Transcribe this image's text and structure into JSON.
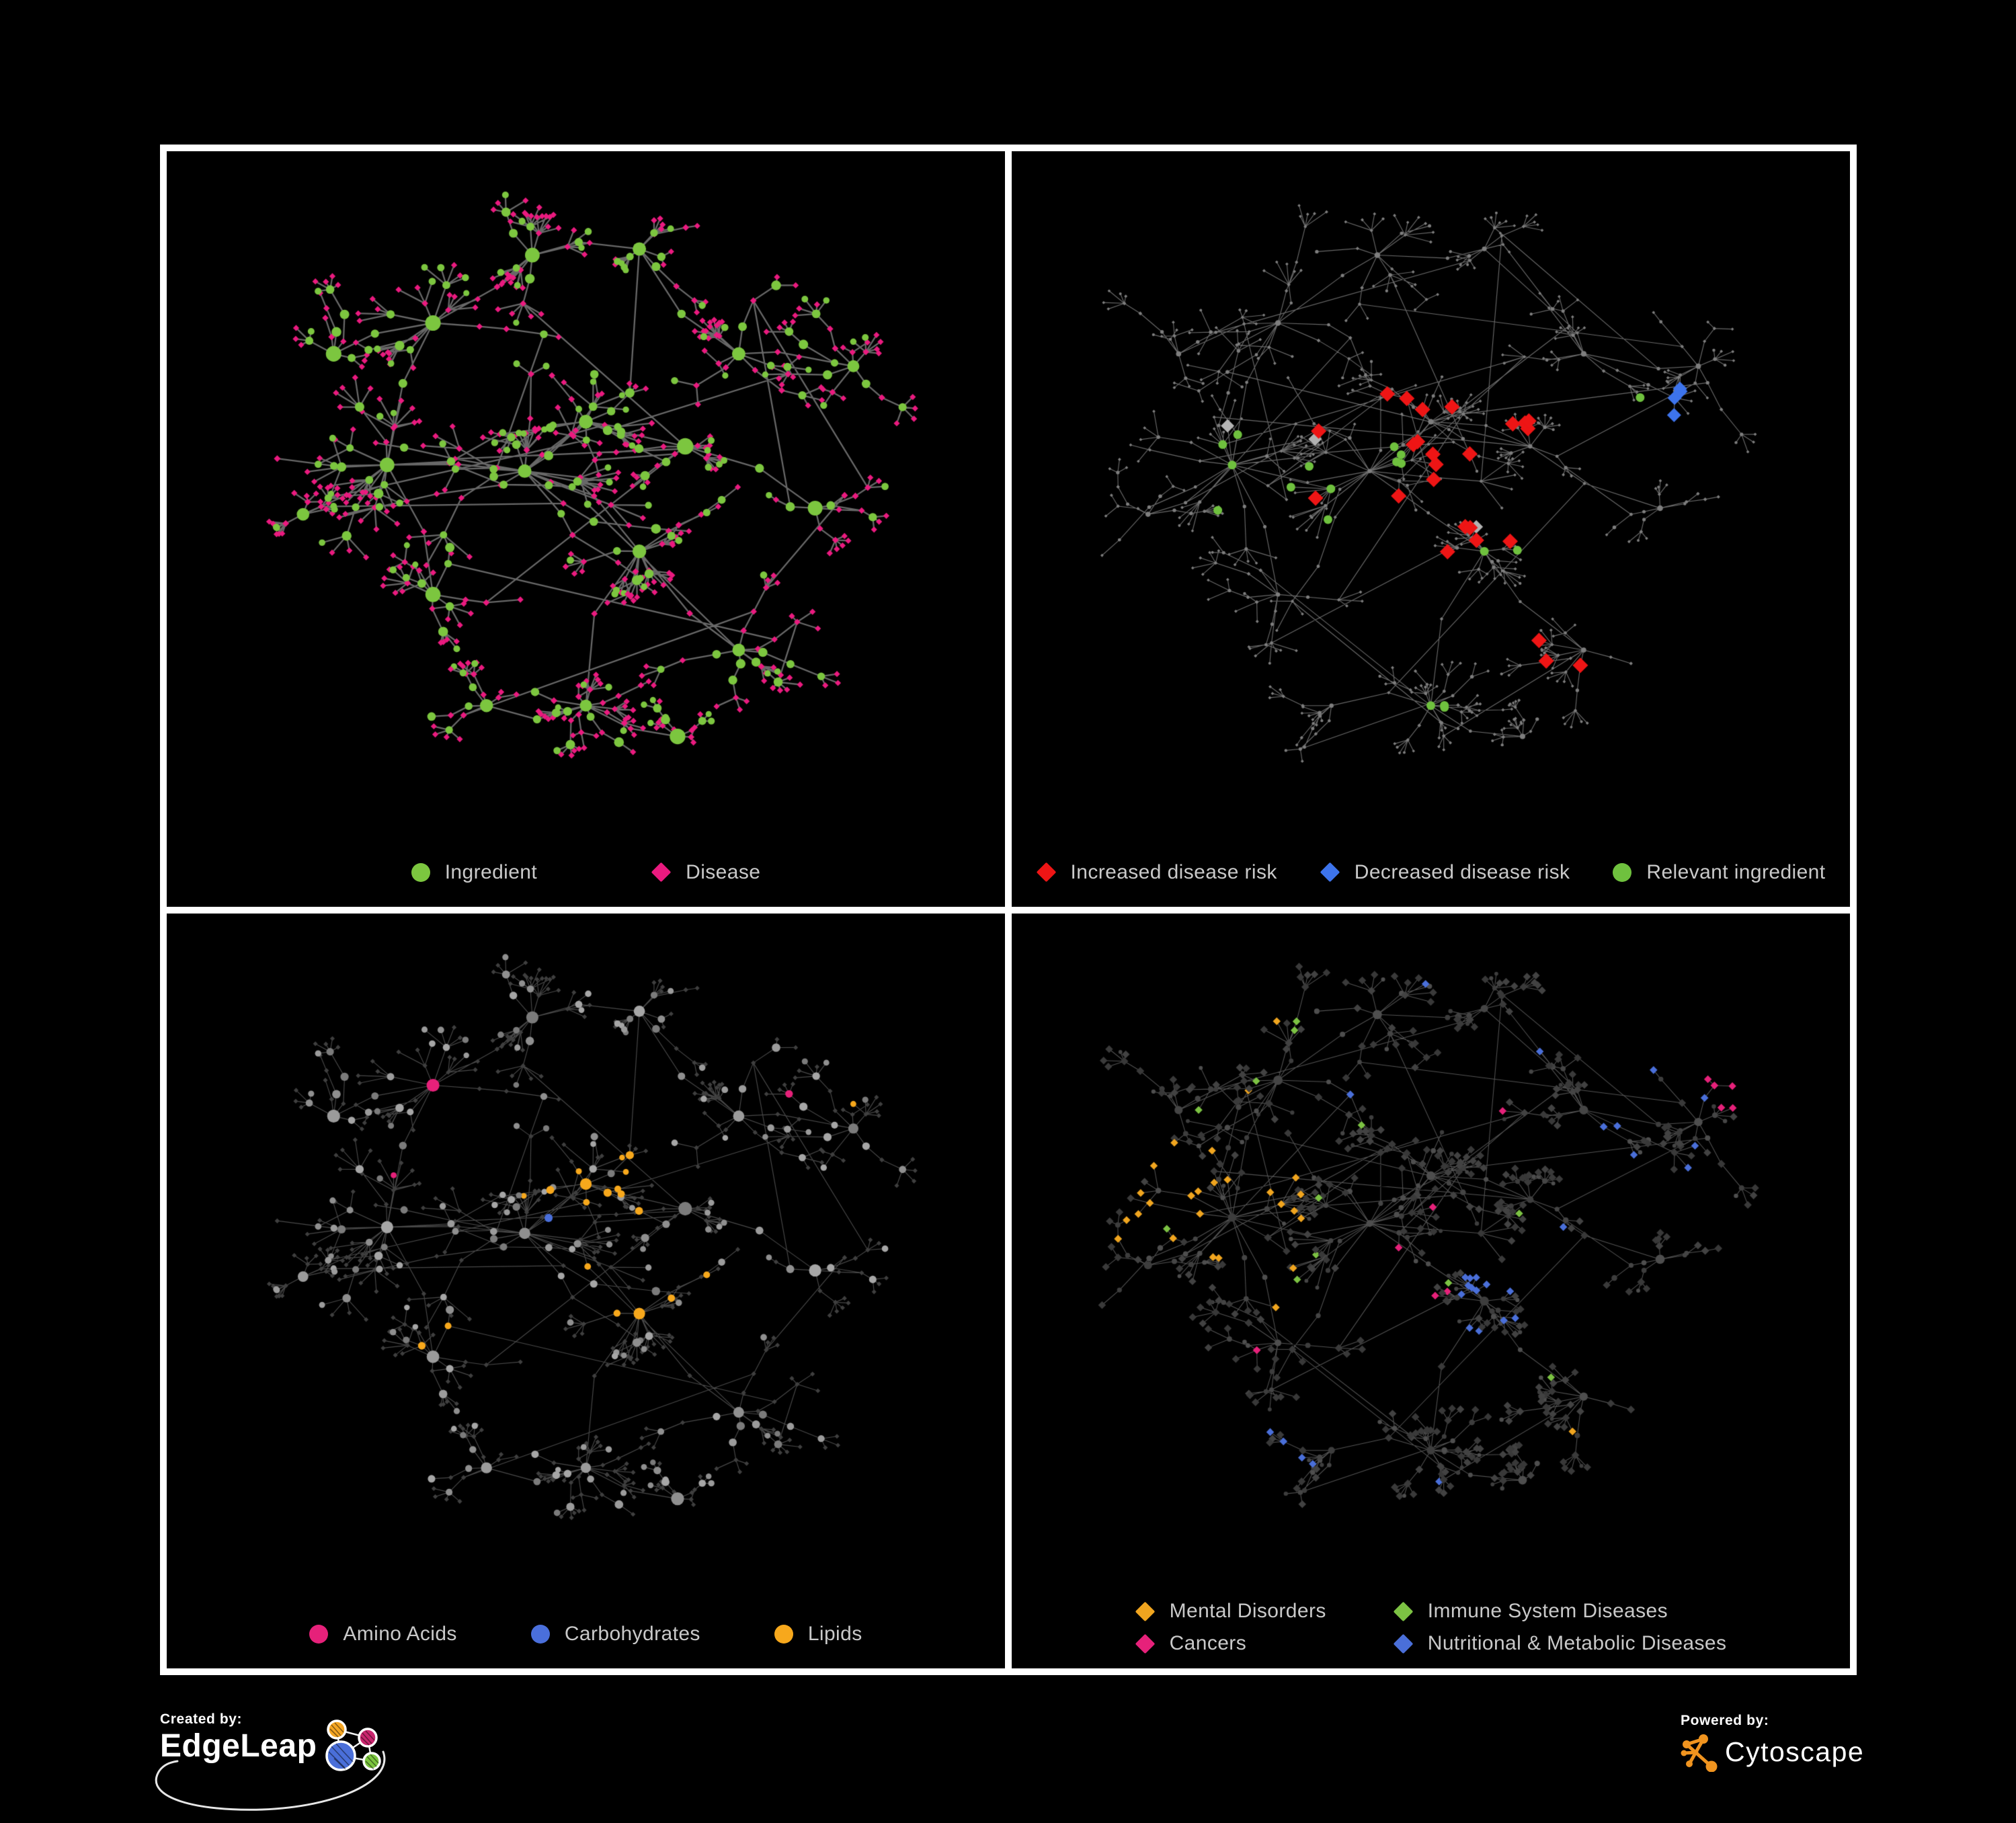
{
  "figure": {
    "background": "#000000",
    "frame_color": "#ffffff",
    "legend_text_color": "#C9C9C9"
  },
  "footer": {
    "created_by_label": "Created by:",
    "created_by_brand": "EdgeLeap",
    "powered_by_label": "Powered by:",
    "powered_by_brand": "Cytoscape",
    "edgeleap_icon_colors": [
      "#F5A623",
      "#C9256E",
      "#4A6FD9",
      "#7CC63F"
    ],
    "cytoscape_icon_color": "#F0941F"
  },
  "layout": {
    "clusters": [
      [
        0.24,
        0.48,
        0.095,
        13
      ],
      [
        0.42,
        0.49,
        0.105,
        15
      ],
      [
        0.5,
        0.41,
        0.06,
        9
      ],
      [
        0.57,
        0.62,
        0.06,
        9
      ],
      [
        0.5,
        0.87,
        0.05,
        11
      ],
      [
        0.3,
        0.25,
        0.08,
        8
      ],
      [
        0.43,
        0.14,
        0.07,
        7
      ],
      [
        0.57,
        0.13,
        0.05,
        5
      ],
      [
        0.7,
        0.3,
        0.06,
        7
      ],
      [
        0.85,
        0.32,
        0.06,
        7
      ],
      [
        0.7,
        0.78,
        0.055,
        7
      ],
      [
        0.3,
        0.69,
        0.065,
        7
      ],
      [
        0.17,
        0.3,
        0.055,
        5
      ],
      [
        0.13,
        0.56,
        0.045,
        4
      ],
      [
        0.63,
        0.45,
        0.045,
        5
      ],
      [
        0.8,
        0.55,
        0.045,
        5
      ],
      [
        0.37,
        0.87,
        0.045,
        5
      ],
      [
        0.62,
        0.92,
        0.035,
        4
      ]
    ],
    "extra_links": 40
  },
  "panels": [
    {
      "id": "ingredient-disease",
      "layout_seed": 13,
      "legend": {
        "gap": 170,
        "rows": [
          [
            {
              "label": "Ingredient",
              "shape": "circle",
              "color": "#7CC63F"
            },
            {
              "label": "Disease",
              "shape": "diamond",
              "color": "#EA1A7F"
            }
          ]
        ]
      },
      "style": {
        "edge": {
          "color": "#6E6E6E",
          "width": 2.3,
          "alpha": 0.95
        },
        "ingredient": {
          "shape": "circle",
          "color": "#7CC63F",
          "r_base": 3.2,
          "r_scale": 0.55
        },
        "disease": {
          "shape": "diamond",
          "color": "#EA1A7F",
          "r_base": 4.3,
          "r_scale": 0.1
        },
        "rules": []
      }
    },
    {
      "id": "disease-risk",
      "layout_seed": 47,
      "legend": {
        "gap": 64,
        "rows": [
          [
            {
              "label": "Increased disease risk",
              "shape": "diamond",
              "color": "#EE1515"
            },
            {
              "label": "Decreased disease risk",
              "shape": "diamond",
              "color": "#3D74EC"
            },
            {
              "label": "Relevant ingredient",
              "shape": "circle",
              "color": "#6FC13E"
            }
          ]
        ]
      },
      "style": {
        "edge": {
          "color": "#8C8C8C",
          "width": 1.15,
          "alpha": 0.75
        },
        "ingredient": {
          "shape": "circle",
          "color": "#7E7E7E",
          "r_base": 1.6,
          "r_scale": 0.16
        },
        "disease": {
          "shape": "diamond",
          "color": "#7E7E7E",
          "r_base": 2.0,
          "r_scale": 0.12
        },
        "rules": [
          {
            "target": "disease",
            "color": "#EE1515",
            "r": 11.5,
            "foci": [
              [
                0.42,
                0.5,
                0.085,
                0.55
              ],
              [
                0.46,
                0.41,
                0.05,
                0.5
              ],
              [
                0.52,
                0.47,
                0.04,
                0.5
              ],
              [
                0.25,
                0.46,
                0.035,
                0.3
              ],
              [
                0.57,
                0.6,
                0.045,
                0.45
              ],
              [
                0.7,
                0.78,
                0.035,
                0.55
              ],
              [
                0.63,
                0.43,
                0.025,
                0.8
              ],
              [
                0.31,
                0.33,
                0.018,
                0.9
              ],
              [
                0.74,
                0.8,
                0.03,
                0.5
              ],
              [
                0.86,
                0.74,
                0.025,
                0.6
              ],
              [
                0.55,
                0.53,
                0.03,
                0.5
              ]
            ]
          },
          {
            "target": "disease",
            "color": "#3D74EC",
            "r": 10.5,
            "foci": [
              [
                0.235,
                0.5,
                0.04,
                0.45
              ],
              [
                0.82,
                0.375,
                0.022,
                0.98
              ],
              [
                0.27,
                0.455,
                0.025,
                0.35
              ]
            ]
          },
          {
            "target": "disease",
            "color": "#B3B3B3",
            "r": 10,
            "foci": [
              [
                0.41,
                0.47,
                0.09,
                0.08
              ],
              [
                0.225,
                0.44,
                0.04,
                0.3
              ],
              [
                0.285,
                0.59,
                0.022,
                0.6
              ],
              [
                0.56,
                0.57,
                0.03,
                0.25
              ]
            ]
          },
          {
            "target": "ingredient",
            "color": "#6FC13E",
            "r": 6.5,
            "foci": [
              [
                0.43,
                0.47,
                0.09,
                0.32
              ],
              [
                0.25,
                0.48,
                0.065,
                0.4
              ],
              [
                0.57,
                0.6,
                0.04,
                0.55
              ],
              [
                0.7,
                0.79,
                0.035,
                0.5
              ],
              [
                0.5,
                0.87,
                0.018,
                0.95
              ],
              [
                0.78,
                0.385,
                0.018,
                0.95
              ],
              [
                0.29,
                0.66,
                0.018,
                0.8
              ],
              [
                0.86,
                0.6,
                0.028,
                0.4
              ],
              [
                0.13,
                0.52,
                0.018,
                0.6
              ],
              [
                0.48,
                0.3,
                0.03,
                0.3
              ]
            ]
          }
        ]
      }
    },
    {
      "id": "ingredient-classes",
      "layout_seed": 13,
      "legend": {
        "gap": 110,
        "rows": [
          [
            {
              "label": "Amino Acids",
              "shape": "circle",
              "color": "#E6217A"
            },
            {
              "label": "Carbohydrates",
              "shape": "circle",
              "color": "#4A6FDB"
            },
            {
              "label": "Lipids",
              "shape": "circle",
              "color": "#F7A81C"
            }
          ]
        ]
      },
      "style": {
        "edge": {
          "color": "#7A7A7A",
          "width": 1.15,
          "alpha": 0.6
        },
        "ingredient": {
          "shape": "circle",
          "color": "#9B9B9B",
          "r_base": 3.2,
          "r_scale": 0.42,
          "variants": [
            "#A6A6A6",
            "#8F8F8F",
            "#7B7B7B",
            "#9B9B9B"
          ]
        },
        "disease": {
          "shape": "diamond",
          "color": "#3F3F3F",
          "r_base": 3.4,
          "r_scale": 0.05
        },
        "rules": [
          {
            "target": "ingredient",
            "color": "#4A6FDB",
            "foci": [
              [
                0.5,
                0.4,
                0.04,
                0.35
              ],
              [
                0.44,
                0.5,
                0.035,
                0.25
              ],
              [
                0.05,
                0.245,
                0.015,
                0.95
              ],
              [
                0.28,
                0.06,
                0.015,
                0.9
              ],
              [
                0.41,
                0.28,
                0.015,
                0.7
              ],
              [
                0.68,
                0.56,
                0.018,
                0.6
              ]
            ]
          },
          {
            "target": "ingredient",
            "color": "#F7A81C",
            "foci": [
              [
                0.5,
                0.41,
                0.055,
                0.95
              ],
              [
                0.43,
                0.47,
                0.05,
                0.35
              ],
              [
                0.46,
                0.56,
                0.04,
                0.45
              ],
              [
                0.56,
                0.62,
                0.028,
                0.95
              ],
              [
                0.44,
                0.22,
                0.06,
                0.45
              ],
              [
                0.36,
                0.25,
                0.04,
                0.3
              ],
              [
                0.65,
                0.57,
                0.045,
                0.6
              ],
              [
                0.62,
                0.7,
                0.03,
                0.4
              ],
              [
                0.73,
                0.42,
                0.035,
                0.3
              ],
              [
                0.3,
                0.65,
                0.03,
                0.4
              ],
              [
                0.86,
                0.3,
                0.02,
                0.5
              ],
              [
                0.35,
                0.57,
                0.025,
                0.4
              ],
              [
                0.6,
                0.3,
                0.03,
                0.3
              ]
            ]
          },
          {
            "target": "ingredient",
            "color": "#E6217A",
            "foci": [
              [
                0.205,
                0.17,
                0.03,
                0.7
              ],
              [
                0.3,
                0.245,
                0.03,
                0.5
              ],
              [
                0.235,
                0.39,
                0.02,
                0.6
              ],
              [
                0.25,
                0.47,
                0.02,
                0.5
              ],
              [
                0.11,
                0.49,
                0.015,
                0.8
              ],
              [
                0.66,
                0.04,
                0.013,
                0.9
              ],
              [
                0.94,
                0.27,
                0.015,
                0.9
              ],
              [
                0.78,
                0.26,
                0.018,
                0.6
              ],
              [
                0.28,
                0.6,
                0.025,
                0.5
              ],
              [
                0.35,
                0.66,
                0.02,
                0.5
              ],
              [
                0.46,
                0.6,
                0.018,
                0.5
              ],
              [
                0.26,
                0.75,
                0.03,
                0.6
              ],
              [
                0.69,
                0.7,
                0.04,
                0.6
              ],
              [
                0.34,
                0.77,
                0.018,
                0.6
              ],
              [
                0.73,
                0.66,
                0.02,
                0.5
              ]
            ]
          }
        ]
      }
    },
    {
      "id": "disease-categories",
      "layout_seed": 47,
      "legend": {
        "columns": 2,
        "col_gap": 100,
        "row_gap": 14,
        "rows": [
          [
            {
              "label": "Mental Disorders",
              "shape": "diamond",
              "color": "#F0A51F"
            },
            {
              "label": "Immune System Diseases",
              "shape": "diamond",
              "color": "#7CC243"
            }
          ],
          [
            {
              "label": "Cancers",
              "shape": "diamond",
              "color": "#E6217A"
            },
            {
              "label": "Nutritional & Metabolic Diseases",
              "shape": "diamond",
              "color": "#4A6FD9"
            }
          ]
        ]
      },
      "style": {
        "edge": {
          "color": "#8A8A8A",
          "width": 1.05,
          "alpha": 0.6
        },
        "ingredient": {
          "shape": "circle",
          "color": "#3D3D3D",
          "r_base": 2.2,
          "r_scale": 0.28,
          "variants": [
            "#454545",
            "#3D3D3D",
            "#4E4E4E"
          ]
        },
        "disease": {
          "shape": "diamond",
          "color": "#3D3D3D",
          "r_base": 5.6,
          "r_scale": 0.05,
          "variants": [
            "#3A3A3A",
            "#424242",
            "#383838"
          ]
        },
        "rules": [
          {
            "target": "disease",
            "color": "#7CC243",
            "foci": [
              [
                0.5,
                0.5,
                9,
                0.025
              ]
            ]
          },
          {
            "target": "disease",
            "color": "#F0A51F",
            "foci": [
              [
                0.21,
                0.47,
                0.095,
                0.97
              ],
              [
                0.28,
                0.12,
                0.025,
                0.7
              ],
              [
                0.39,
                0.26,
                0.02,
                0.7
              ],
              [
                0.13,
                0.33,
                0.018,
                0.7
              ],
              [
                0.62,
                0.44,
                0.018,
                0.8
              ],
              [
                0.15,
                0.74,
                0.025,
                0.55
              ],
              [
                0.48,
                0.7,
                0.02,
                0.5
              ],
              [
                0.67,
                0.85,
                0.018,
                0.6
              ],
              [
                0.3,
                0.31,
                0.018,
                0.5
              ],
              [
                0.25,
                0.3,
                0.02,
                0.4
              ]
            ]
          },
          {
            "target": "disease",
            "color": "#E6217A",
            "foci": [
              [
                0.43,
                0.55,
                0.065,
                0.85
              ],
              [
                0.88,
                0.28,
                0.035,
                0.8
              ],
              [
                0.48,
                0.87,
                0.025,
                0.6
              ],
              [
                0.26,
                0.7,
                0.028,
                0.5
              ],
              [
                0.76,
                0.66,
                0.02,
                0.65
              ],
              [
                0.59,
                0.3,
                0.018,
                0.6
              ],
              [
                0.36,
                0.74,
                0.02,
                0.6
              ],
              [
                0.5,
                0.63,
                0.03,
                0.5
              ]
            ]
          },
          {
            "target": "disease",
            "color": "#4A6FD9",
            "foci": [
              [
                0.57,
                0.6,
                0.042,
                0.9
              ],
              [
                0.64,
                0.51,
                0.028,
                0.6
              ],
              [
                0.8,
                0.22,
                0.05,
                0.55
              ],
              [
                0.84,
                0.4,
                0.038,
                0.5
              ],
              [
                0.26,
                0.09,
                0.035,
                0.55
              ],
              [
                0.51,
                0.09,
                0.035,
                0.5
              ],
              [
                0.6,
                0.2,
                0.035,
                0.4
              ],
              [
                0.37,
                0.27,
                0.02,
                0.5
              ],
              [
                0.18,
                0.33,
                0.02,
                0.45
              ],
              [
                0.3,
                0.62,
                0.028,
                0.5
              ],
              [
                0.3,
                0.85,
                0.045,
                0.45
              ],
              [
                0.51,
                0.89,
                0.02,
                0.6
              ],
              [
                0.86,
                0.08,
                0.025,
                0.6
              ],
              [
                0.73,
                0.33,
                0.025,
                0.4
              ],
              [
                0.93,
                0.5,
                0.02,
                0.5
              ]
            ]
          }
        ]
      }
    }
  ]
}
